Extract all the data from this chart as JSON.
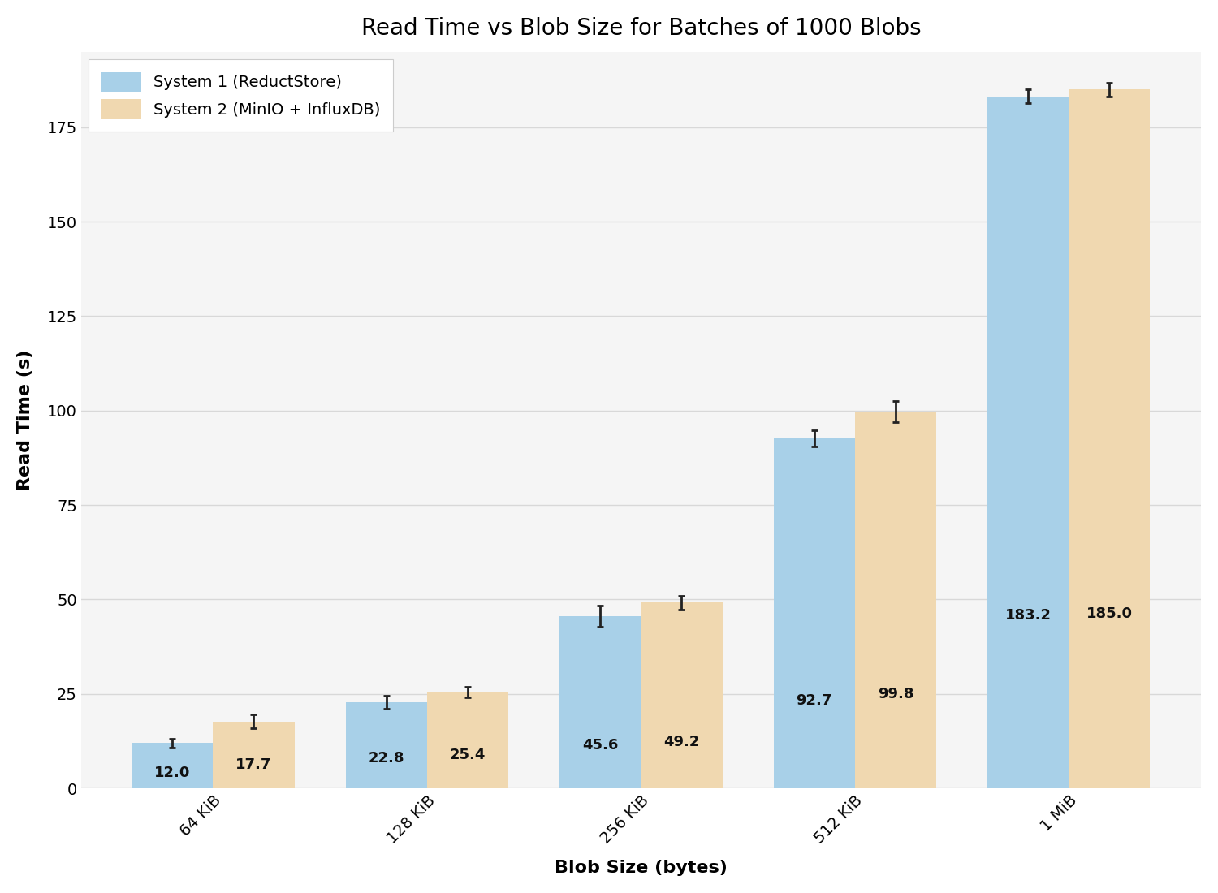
{
  "title": "Read Time vs Blob Size for Batches of 1000 Blobs",
  "xlabel": "Blob Size (bytes)",
  "ylabel": "Read Time (s)",
  "categories": [
    "64 KiB",
    "128 KiB",
    "256 KiB",
    "512 KiB",
    "1 MiB"
  ],
  "system1_values": [
    12.0,
    22.8,
    45.6,
    92.7,
    183.2
  ],
  "system2_values": [
    17.7,
    25.4,
    49.2,
    99.8,
    185.0
  ],
  "system1_errors": [
    1.2,
    1.8,
    2.8,
    2.2,
    1.8
  ],
  "system2_errors": [
    1.8,
    1.4,
    1.8,
    2.8,
    1.8
  ],
  "system1_color": "#a8d0e8",
  "system2_color": "#f0d8b0",
  "system1_label": "System 1 (ReductStore)",
  "system2_label": "System 2 (MinIO + InfluxDB)",
  "bar_width": 0.38,
  "ylim": [
    0,
    195
  ],
  "yticks": [
    0,
    25,
    50,
    75,
    100,
    125,
    150,
    175
  ],
  "background_color": "#ffffff",
  "plot_bg_color": "#f5f5f5",
  "grid_color": "#d8d8d8",
  "title_fontsize": 20,
  "label_fontsize": 16,
  "tick_fontsize": 14,
  "legend_fontsize": 14,
  "value_fontsize": 13,
  "edgecolor": "none"
}
